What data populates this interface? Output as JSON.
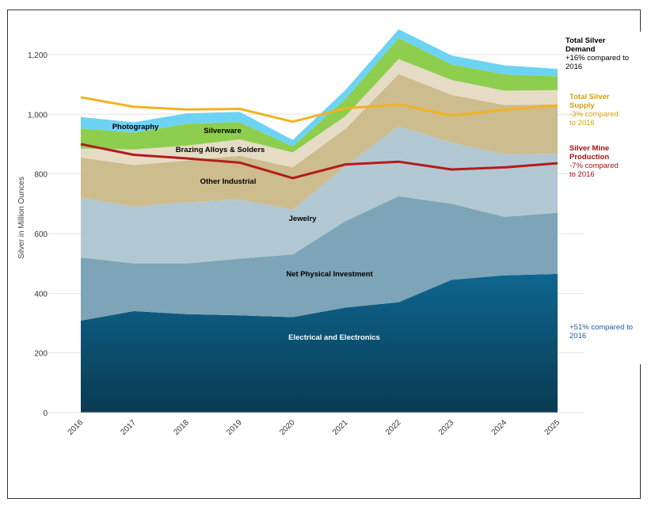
{
  "chart_data": {
    "type": "area",
    "title": "",
    "xlabel": "",
    "ylabel": "Silver in Million Ounces",
    "ylim": [
      0,
      1300
    ],
    "yticks": [
      0,
      200,
      400,
      600,
      800,
      1000,
      1200
    ],
    "ytick_labels": [
      "0",
      "200",
      "400",
      "600",
      "800",
      "1,000",
      "1,200"
    ],
    "categories": [
      "2016",
      "2017",
      "2018",
      "2019",
      "2020",
      "2021",
      "2022",
      "2023",
      "2024",
      "2025"
    ],
    "grid": true,
    "stacked_series": [
      {
        "name": "Electrical and Electronics",
        "color_top": "#0e668f",
        "color_bottom": "#0a3a52",
        "label_color": "#ffffff",
        "values": [
          308,
          340,
          330,
          326,
          320,
          352,
          370,
          445,
          460,
          465
        ]
      },
      {
        "name": "Net Physical Investment",
        "color": "#7ea4b7",
        "label_color": "#000000",
        "values": [
          212,
          160,
          170,
          190,
          210,
          290,
          355,
          255,
          196,
          205
        ]
      },
      {
        "name": "Jewelry",
        "color": "#b1c8d3",
        "label_color": "#000000",
        "values": [
          200,
          190,
          205,
          198,
          150,
          185,
          235,
          205,
          210,
          198
        ]
      },
      {
        "name": "Other Industrial",
        "color": "#cdbc8e",
        "label_color": "#000000",
        "values": [
          135,
          140,
          140,
          147,
          142,
          125,
          175,
          160,
          165,
          165
        ]
      },
      {
        "name": "Brazing Alloys & Solders",
        "color": "#e6dcc6",
        "label_color": "#000000",
        "values": [
          30,
          52,
          50,
          55,
          50,
          42,
          50,
          50,
          48,
          48
        ]
      },
      {
        "name": "Silverware",
        "color": "#8dce4e",
        "label_color": "#000000",
        "values": [
          68,
          56,
          73,
          58,
          20,
          58,
          70,
          52,
          55,
          46
        ]
      },
      {
        "name": "Photography",
        "color": "#6dd3f2",
        "label_color": "#000000",
        "values": [
          38,
          35,
          35,
          34,
          22,
          30,
          30,
          30,
          30,
          25
        ]
      }
    ],
    "line_series": [
      {
        "name": "Total Silver Supply",
        "color": "#f0b323",
        "values": [
          1057,
          1025,
          1016,
          1018,
          975,
          1020,
          1033,
          996,
          1015,
          1030
        ]
      },
      {
        "name": "Silver Mine Production",
        "color": "#b31b1b",
        "values": [
          900,
          864,
          852,
          838,
          786,
          832,
          841,
          815,
          822,
          836
        ]
      }
    ],
    "annotations": [
      {
        "key": "demand",
        "title": "Total Silver Demand",
        "text": "+16% compared to 2016",
        "color": "#000000"
      },
      {
        "key": "supply",
        "title": "Total Silver Supply",
        "text": "-3% compared to 2016",
        "color": "#d4a017"
      },
      {
        "key": "mine",
        "title": "Silver Mine Production",
        "text": "-7% compared to 2016",
        "color": "#a31212"
      },
      {
        "key": "electrical",
        "title": "",
        "text": "+51% compared to 2016",
        "color": "#1a5fa0"
      }
    ]
  }
}
